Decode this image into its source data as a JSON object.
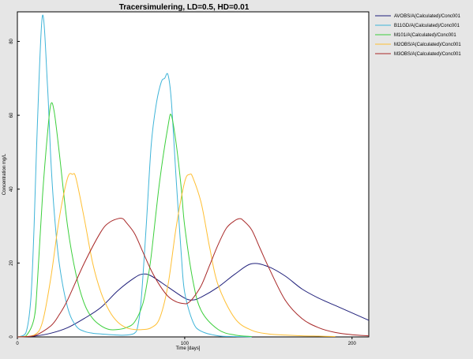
{
  "chart_data": {
    "type": "line",
    "title": "Tracersimulering, LD=0.5, HD=0.01",
    "xlabel": "Time  [days]",
    "ylabel": "Concentration  mg/L",
    "xlim": [
      0,
      210
    ],
    "ylim": [
      0,
      88
    ],
    "xticks": [
      0,
      100,
      200
    ],
    "yticks": [
      0,
      20,
      40,
      60,
      80
    ],
    "grid": false,
    "legend_position": "top-right",
    "series": [
      {
        "name": "AVOBS/A(Calculated)/Conc001",
        "color": "#1f1f7a",
        "x": [
          0,
          10,
          20,
          30,
          40,
          50,
          60,
          70,
          75,
          80,
          90,
          100,
          105,
          110,
          120,
          130,
          140,
          150,
          160,
          170,
          180,
          190,
          200,
          210
        ],
        "y": [
          0,
          0.2,
          1,
          2.5,
          5,
          8,
          12.5,
          16,
          17,
          16.5,
          13.5,
          10.5,
          10,
          10.8,
          13.5,
          17,
          19.8,
          19,
          16.5,
          13,
          10.5,
          8.5,
          6.5,
          4.5
        ]
      },
      {
        "name": "B11GD/A(Calculated)/Conc001",
        "color": "#3fb4d8",
        "x": [
          0,
          5,
          8,
          10,
          12,
          15,
          18,
          20,
          22,
          25,
          30,
          35,
          40,
          45,
          50,
          60,
          65,
          70,
          72,
          74,
          77,
          80,
          83,
          86,
          88,
          90,
          92,
          95,
          98,
          100,
          105,
          110,
          120,
          130,
          140
        ],
        "y": [
          0,
          1,
          10,
          30,
          58,
          87,
          68,
          48,
          34,
          20,
          8,
          3,
          1.5,
          1,
          0.8,
          0.5,
          0.5,
          1,
          3,
          10,
          30,
          52,
          63,
          69,
          70,
          71,
          64,
          42,
          22,
          12,
          4,
          1.5,
          0.3,
          0.1,
          0
        ]
      },
      {
        "name": "M101/A(Calculated)/Conc001",
        "color": "#3ccf3c",
        "x": [
          0,
          5,
          10,
          12,
          15,
          18,
          20,
          22,
          25,
          30,
          35,
          40,
          45,
          50,
          55,
          60,
          65,
          70,
          75,
          78,
          80,
          85,
          90,
          92,
          95,
          98,
          100,
          105,
          110,
          120,
          130,
          140
        ],
        "y": [
          0,
          0.2,
          5,
          15,
          38,
          55,
          63,
          61,
          50,
          30,
          17,
          9,
          5,
          3,
          2,
          2,
          2.5,
          4,
          9,
          16,
          22,
          42,
          57,
          60,
          52,
          40,
          30,
          15,
          7,
          2,
          0.5,
          0.1
        ]
      },
      {
        "name": "M2OBS/A(Calculated)/Conc001",
        "color": "#ffbf33",
        "x": [
          0,
          10,
          15,
          20,
          25,
          30,
          33,
          35,
          40,
          45,
          50,
          55,
          60,
          65,
          70,
          75,
          80,
          85,
          90,
          95,
          100,
          103,
          105,
          110,
          115,
          120,
          130,
          140,
          150,
          160,
          170,
          180,
          190
        ],
        "y": [
          0,
          0.5,
          4,
          16,
          32,
          43,
          44,
          43,
          32,
          20,
          12,
          7,
          4,
          2.5,
          2,
          2,
          2.5,
          5,
          14,
          30,
          42,
          44,
          43,
          36,
          24,
          14,
          5,
          1.8,
          0.8,
          0.5,
          0.3,
          0.2,
          0.1
        ]
      },
      {
        "name": "M3OBS/A(Calculated)/Conc001",
        "color": "#a82828",
        "x": [
          0,
          10,
          20,
          25,
          30,
          40,
          50,
          55,
          60,
          63,
          65,
          70,
          75,
          80,
          85,
          90,
          95,
          100,
          102,
          105,
          110,
          115,
          120,
          125,
          130,
          133,
          135,
          140,
          145,
          150,
          160,
          170,
          180,
          190,
          200,
          210
        ],
        "y": [
          0,
          0.3,
          3,
          6,
          10,
          20,
          28.5,
          31,
          32,
          32,
          31,
          28,
          23,
          18,
          14,
          11,
          9.5,
          9,
          9.2,
          10.5,
          14,
          19.5,
          25,
          29.5,
          31.5,
          32,
          31.5,
          29,
          24,
          19,
          10,
          5,
          2.5,
          1.2,
          0.6,
          0.3
        ]
      }
    ]
  }
}
